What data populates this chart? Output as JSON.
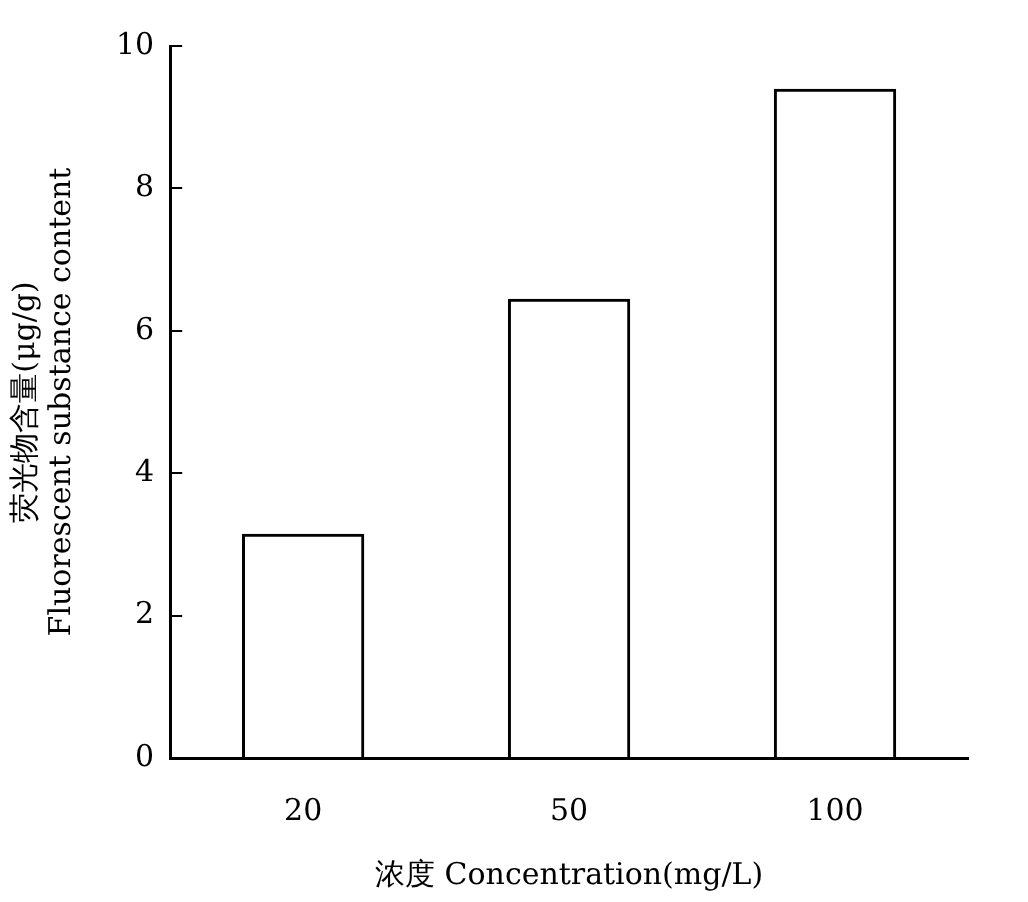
{
  "chart_data": {
    "type": "bar",
    "xlabel": "浓度 Concentration(mg/L)",
    "ylabel": "荧光物含量(μg/g)\nFluorescent substance content",
    "categories": [
      "20",
      "50",
      "100"
    ],
    "values": [
      3.15,
      6.45,
      9.4
    ],
    "color": "#000000",
    "ylim": [
      0,
      10
    ],
    "yticks": [
      0,
      2,
      4,
      6,
      8,
      10
    ],
    "grid": false,
    "legend": false
  }
}
